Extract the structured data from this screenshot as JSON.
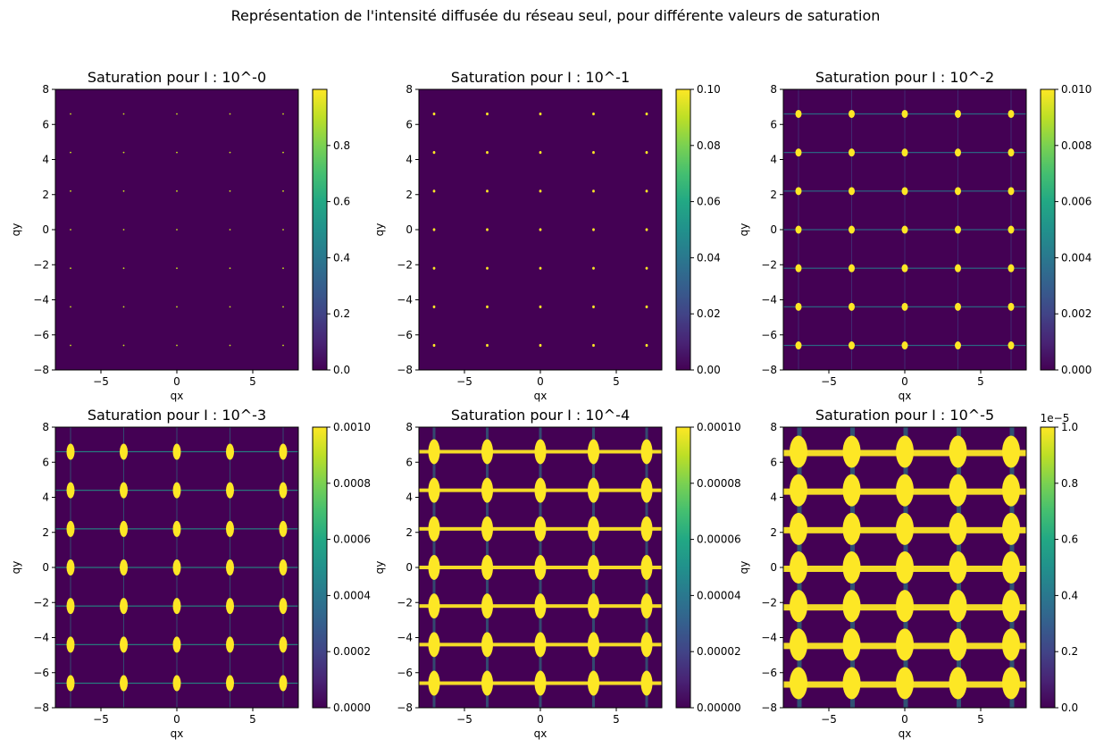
{
  "figure": {
    "suptitle": "Représentation de l'intensité diffusée du réseau seul, pour différente valeurs de saturation"
  },
  "chart_data": [
    {
      "type": "heatmap",
      "title": "Saturation pour I : 10^-0",
      "xlabel": "qx",
      "ylabel": "qy",
      "xlim": [
        -8,
        8
      ],
      "ylim": [
        -8,
        8
      ],
      "x_ticks": [
        -5,
        0,
        5
      ],
      "x_tick_labels": [
        "−5",
        "0",
        "5"
      ],
      "y_ticks": [
        -8,
        -6,
        -4,
        -2,
        0,
        2,
        4,
        6,
        8
      ],
      "y_tick_labels": [
        "−8",
        "−6",
        "−4",
        "−2",
        "0",
        "2",
        "4",
        "6",
        "8"
      ],
      "colormap": "viridis",
      "clim": [
        0,
        1
      ],
      "colorbar_ticks": [
        0,
        0.2,
        0.4,
        0.6,
        0.8
      ],
      "colorbar_tick_labels": [
        "0.0",
        "0.2",
        "0.4",
        "0.6",
        "0.8"
      ],
      "colorbar_offset_text": "",
      "peak_qx": [
        -7,
        -3.5,
        0,
        3.5,
        7
      ],
      "peak_qy": [
        -6.6,
        -4.4,
        -2.2,
        0,
        2.2,
        4.4,
        6.6
      ],
      "saturation_level": 1
    },
    {
      "type": "heatmap",
      "title": "Saturation pour I : 10^-1",
      "xlabel": "qx",
      "ylabel": "qy",
      "xlim": [
        -8,
        8
      ],
      "ylim": [
        -8,
        8
      ],
      "x_ticks": [
        -5,
        0,
        5
      ],
      "x_tick_labels": [
        "−5",
        "0",
        "5"
      ],
      "y_ticks": [
        -8,
        -6,
        -4,
        -2,
        0,
        2,
        4,
        6,
        8
      ],
      "y_tick_labels": [
        "−8",
        "−6",
        "−4",
        "−2",
        "0",
        "2",
        "4",
        "6",
        "8"
      ],
      "colormap": "viridis",
      "clim": [
        0,
        0.1
      ],
      "colorbar_ticks": [
        0,
        0.02,
        0.04,
        0.06,
        0.08,
        0.1
      ],
      "colorbar_tick_labels": [
        "0.00",
        "0.02",
        "0.04",
        "0.06",
        "0.08",
        "0.10"
      ],
      "colorbar_offset_text": "",
      "peak_qx": [
        -7,
        -3.5,
        0,
        3.5,
        7
      ],
      "peak_qy": [
        -6.6,
        -4.4,
        -2.2,
        0,
        2.2,
        4.4,
        6.6
      ],
      "saturation_level": 2
    },
    {
      "type": "heatmap",
      "title": "Saturation pour I : 10^-2",
      "xlabel": "qx",
      "ylabel": "qy",
      "xlim": [
        -8,
        8
      ],
      "ylim": [
        -8,
        8
      ],
      "x_ticks": [
        -5,
        0,
        5
      ],
      "x_tick_labels": [
        "−5",
        "0",
        "5"
      ],
      "y_ticks": [
        -8,
        -6,
        -4,
        -2,
        0,
        2,
        4,
        6,
        8
      ],
      "y_tick_labels": [
        "−8",
        "−6",
        "−4",
        "−2",
        "0",
        "2",
        "4",
        "6",
        "8"
      ],
      "colormap": "viridis",
      "clim": [
        0,
        0.01
      ],
      "colorbar_ticks": [
        0,
        0.002,
        0.004,
        0.006,
        0.008,
        0.01
      ],
      "colorbar_tick_labels": [
        "0.000",
        "0.002",
        "0.004",
        "0.006",
        "0.008",
        "0.010"
      ],
      "colorbar_offset_text": "",
      "peak_qx": [
        -7,
        -3.5,
        0,
        3.5,
        7
      ],
      "peak_qy": [
        -6.6,
        -4.4,
        -2.2,
        0,
        2.2,
        4.4,
        6.6
      ],
      "saturation_level": 3
    },
    {
      "type": "heatmap",
      "title": "Saturation pour I : 10^-3",
      "xlabel": "qx",
      "ylabel": "qy",
      "xlim": [
        -8,
        8
      ],
      "ylim": [
        -8,
        8
      ],
      "x_ticks": [
        -5,
        0,
        5
      ],
      "x_tick_labels": [
        "−5",
        "0",
        "5"
      ],
      "y_ticks": [
        -8,
        -6,
        -4,
        -2,
        0,
        2,
        4,
        6,
        8
      ],
      "y_tick_labels": [
        "−8",
        "−6",
        "−4",
        "−2",
        "0",
        "2",
        "4",
        "6",
        "8"
      ],
      "colormap": "viridis",
      "clim": [
        0,
        0.001
      ],
      "colorbar_ticks": [
        0,
        0.0002,
        0.0004,
        0.0006,
        0.0008,
        0.001
      ],
      "colorbar_tick_labels": [
        "0.0000",
        "0.0002",
        "0.0004",
        "0.0006",
        "0.0008",
        "0.0010"
      ],
      "colorbar_offset_text": "",
      "peak_qx": [
        -7,
        -3.5,
        0,
        3.5,
        7
      ],
      "peak_qy": [
        -6.6,
        -4.4,
        -2.2,
        0,
        2.2,
        4.4,
        6.6
      ],
      "saturation_level": 4
    },
    {
      "type": "heatmap",
      "title": "Saturation pour I : 10^-4",
      "xlabel": "qx",
      "ylabel": "qy",
      "xlim": [
        -8,
        8
      ],
      "ylim": [
        -8,
        8
      ],
      "x_ticks": [
        -5,
        0,
        5
      ],
      "x_tick_labels": [
        "−5",
        "0",
        "5"
      ],
      "y_ticks": [
        -8,
        -6,
        -4,
        -2,
        0,
        2,
        4,
        6,
        8
      ],
      "y_tick_labels": [
        "−8",
        "−6",
        "−4",
        "−2",
        "0",
        "2",
        "4",
        "6",
        "8"
      ],
      "colormap": "viridis",
      "clim": [
        0,
        0.0001
      ],
      "colorbar_ticks": [
        0,
        2e-05,
        4e-05,
        6e-05,
        8e-05,
        0.0001
      ],
      "colorbar_tick_labels": [
        "0.00000",
        "0.00002",
        "0.00004",
        "0.00006",
        "0.00008",
        "0.00010"
      ],
      "colorbar_offset_text": "",
      "peak_qx": [
        -7,
        -3.5,
        0,
        3.5,
        7
      ],
      "peak_qy": [
        -6.6,
        -4.4,
        -2.2,
        0,
        2.2,
        4.4,
        6.6
      ],
      "saturation_level": 5
    },
    {
      "type": "heatmap",
      "title": "Saturation pour I : 10^-5",
      "xlabel": "qx",
      "ylabel": "qy",
      "xlim": [
        -8,
        8
      ],
      "ylim": [
        -8,
        8
      ],
      "x_ticks": [
        -5,
        0,
        5
      ],
      "x_tick_labels": [
        "−5",
        "0",
        "5"
      ],
      "y_ticks": [
        -8,
        -6,
        -4,
        -2,
        0,
        2,
        4,
        6,
        8
      ],
      "y_tick_labels": [
        "−8",
        "−6",
        "−4",
        "−2",
        "0",
        "2",
        "4",
        "6",
        "8"
      ],
      "colormap": "viridis",
      "clim": [
        0,
        1e-05
      ],
      "colorbar_ticks": [
        0,
        2e-06,
        4e-06,
        6e-06,
        8e-06,
        1e-05
      ],
      "colorbar_tick_labels": [
        "0.0",
        "0.2",
        "0.4",
        "0.6",
        "0.8",
        "1.0"
      ],
      "colorbar_offset_text": "1e−5",
      "peak_qx": [
        -7,
        -3.5,
        0,
        3.5,
        7
      ],
      "peak_qy": [
        -6.6,
        -4.4,
        -2.2,
        0,
        2.2,
        4.4,
        6.6
      ],
      "saturation_level": 6
    }
  ]
}
